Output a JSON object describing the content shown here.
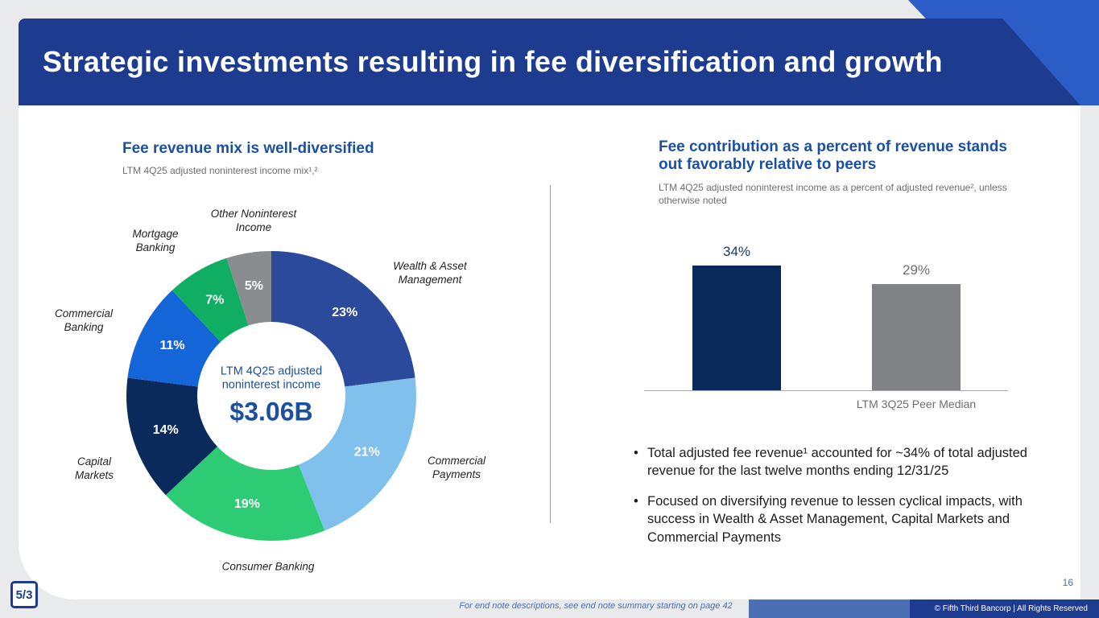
{
  "slide": {
    "title": "Strategic investments resulting in fee diversification and growth",
    "page_number": "16",
    "footnote": "For end note descriptions, see end note summary starting on page 42",
    "copyright": "© Fifth Third Bancorp | All Rights Reserved",
    "logo_text": "5/3"
  },
  "left_panel": {
    "heading": "Fee revenue mix is well-diversified",
    "subheading": "LTM 4Q25 adjusted noninterest income mix¹,²",
    "center": {
      "line1": "LTM 4Q25 adjusted",
      "line2": "noninterest income",
      "value": "$3.06B"
    }
  },
  "right_panel": {
    "heading": "Fee contribution as a percent of revenue stands out favorably relative to peers",
    "subheading": "LTM 4Q25 adjusted noninterest income as a percent of adjusted revenue², unless otherwise noted",
    "axis_label": "LTM 3Q25 Peer Median",
    "bullets": [
      "Total adjusted fee revenue¹ accounted for ~34% of total adjusted revenue for the last twelve months ending 12/31/25",
      "Focused on diversifying revenue to lessen cyclical impacts, with success in Wealth & Asset Management, Capital Markets and Commercial Payments"
    ]
  },
  "chart_data": [
    {
      "type": "pie",
      "title": "Fee revenue mix is well-diversified",
      "subtitle": "LTM 4Q25 adjusted noninterest income mix",
      "donut": true,
      "center_label": "LTM 4Q25 adjusted noninterest income",
      "center_value": "$3.06B",
      "segments": [
        {
          "label": "Wealth & Asset Management",
          "value": 23,
          "display": "23%",
          "color": "#2b4a9b"
        },
        {
          "label": "Commercial Payments",
          "value": 21,
          "display": "21%",
          "color": "#7fc0ec"
        },
        {
          "label": "Consumer Banking",
          "value": 19,
          "display": "19%",
          "color": "#2dcb73"
        },
        {
          "label": "Capital Markets",
          "value": 14,
          "display": "14%",
          "color": "#0b2a5c"
        },
        {
          "label": "Commercial Banking",
          "value": 11,
          "display": "11%",
          "color": "#1465d8"
        },
        {
          "label": "Mortgage Banking",
          "value": 7,
          "display": "7%",
          "color": "#0fae62"
        },
        {
          "label": "Other Noninterest Income",
          "value": 5,
          "display": "5%",
          "color": "#8a8d8f"
        }
      ]
    },
    {
      "type": "bar",
      "categories": [
        "",
        "LTM 3Q25 Peer Median"
      ],
      "values": [
        34,
        29
      ],
      "display": [
        "34%",
        "29%"
      ],
      "bar_colors": [
        "#0b2a5c",
        "#808285"
      ],
      "label_colors": [
        "#13386b",
        "#6d6e71"
      ],
      "ylim": [
        0,
        40
      ],
      "legend": "none",
      "grid": false
    }
  ]
}
